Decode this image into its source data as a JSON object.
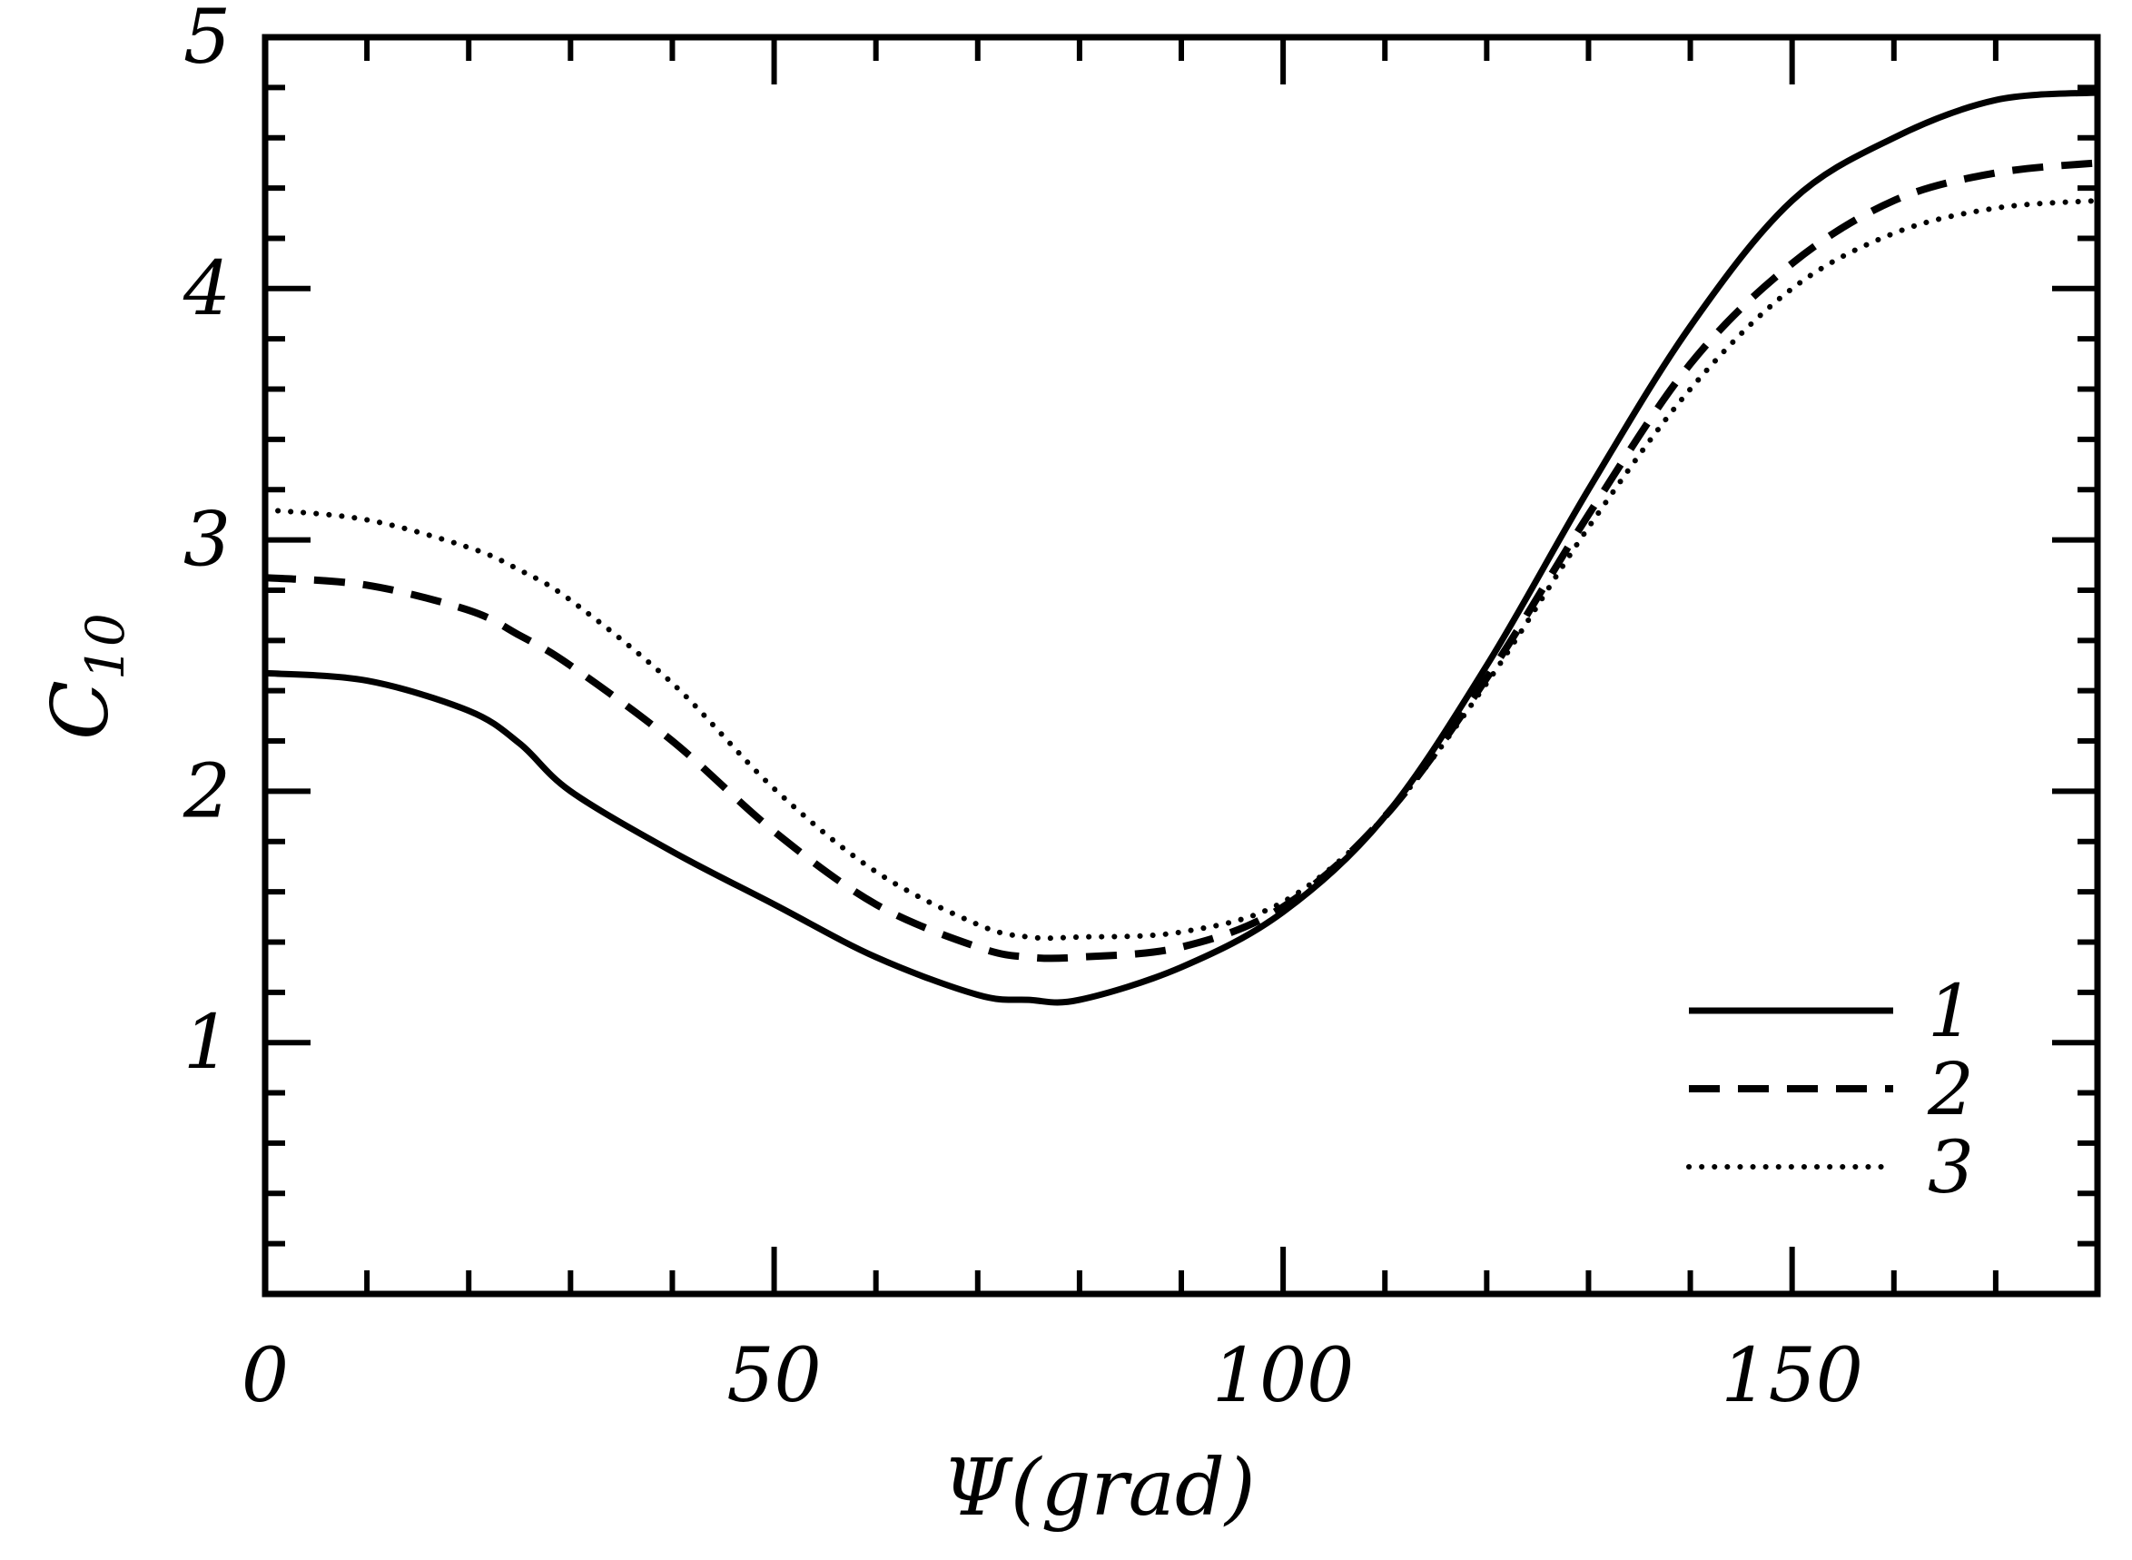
{
  "chart_data": {
    "type": "line",
    "xlabel": "Ψ(grad)",
    "ylabel_base": "C",
    "ylabel_sub": "10",
    "xlim": [
      0,
      180
    ],
    "ylim": [
      0,
      5
    ],
    "xticks": [
      0,
      50,
      100,
      150
    ],
    "xtick_labels": [
      "0",
      "50",
      "100",
      "150"
    ],
    "yticks": [
      1,
      2,
      3,
      4,
      5
    ],
    "ytick_labels": [
      "1",
      "2",
      "3",
      "4",
      "5"
    ],
    "x_minor_step": 10,
    "y_minor_step": 0.2,
    "grid": false,
    "legend_position": "bottom-right",
    "x": [
      0,
      10,
      20,
      25,
      30,
      40,
      50,
      60,
      70,
      75,
      80,
      90,
      100,
      110,
      120,
      130,
      140,
      150,
      160,
      170,
      180
    ],
    "series": [
      {
        "name": "1",
        "style": "solid",
        "values": [
          2.47,
          2.44,
          2.32,
          2.19,
          2.0,
          1.76,
          1.55,
          1.34,
          1.19,
          1.17,
          1.17,
          1.3,
          1.52,
          1.9,
          2.5,
          3.2,
          3.85,
          4.35,
          4.6,
          4.75,
          4.78
        ]
      },
      {
        "name": "2",
        "style": "dashed",
        "values": [
          2.85,
          2.82,
          2.72,
          2.62,
          2.5,
          2.2,
          1.84,
          1.55,
          1.38,
          1.34,
          1.34,
          1.38,
          1.54,
          1.9,
          2.45,
          3.1,
          3.7,
          4.1,
          4.35,
          4.46,
          4.5
        ]
      },
      {
        "name": "3",
        "style": "dotted",
        "values": [
          3.12,
          3.08,
          2.97,
          2.88,
          2.76,
          2.43,
          2.01,
          1.68,
          1.47,
          1.42,
          1.42,
          1.44,
          1.56,
          1.9,
          2.43,
          3.05,
          3.6,
          4.0,
          4.22,
          4.32,
          4.35
        ]
      }
    ]
  }
}
